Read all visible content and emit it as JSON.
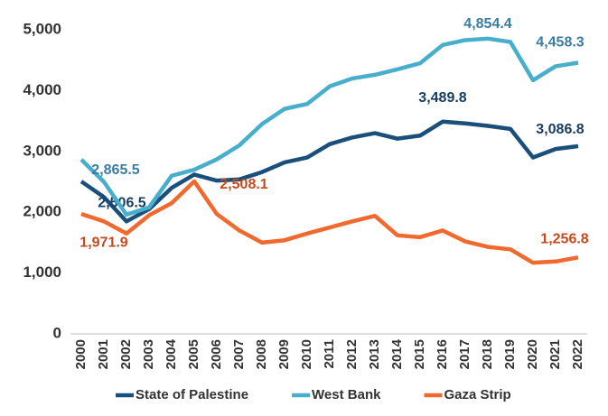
{
  "chart_data": {
    "type": "line",
    "categories": [
      "2000",
      "2001",
      "2002",
      "2003",
      "2004",
      "2005",
      "2006",
      "2007",
      "2008",
      "2009",
      "2010",
      "2011",
      "2012",
      "2013",
      "2014",
      "2015",
      "2016",
      "2017",
      "2018",
      "2019",
      "2020",
      "2021",
      "2022"
    ],
    "ylim": [
      0,
      5000
    ],
    "yticks": [
      0,
      {
        "value": 1000,
        "label": "1,000"
      },
      {
        "value": 2000,
        "label": "2,000"
      },
      {
        "value": 3000,
        "label": "3,000"
      },
      {
        "value": 4000,
        "label": "4,000"
      },
      {
        "value": 5000,
        "label": "5,000"
      }
    ],
    "grid": false,
    "legend": "bottom",
    "series": [
      {
        "name": "State of Palestine",
        "color": "#1b4f7b",
        "label_color": "#173f63",
        "values": [
          2506.5,
          2250,
          1850,
          2050,
          2400,
          2620,
          2520,
          2540,
          2660,
          2820,
          2900,
          3120,
          3230,
          3300,
          3210,
          3260,
          3489.8,
          3460,
          3420,
          3370,
          2900,
          3040,
          3086.8
        ],
        "value_labels": [
          "2,506.5",
          null,
          null,
          null,
          null,
          null,
          null,
          null,
          null,
          null,
          null,
          null,
          null,
          null,
          null,
          null,
          "3,489.8",
          null,
          null,
          null,
          null,
          null,
          "3,086.8"
        ]
      },
      {
        "name": "West Bank",
        "color": "#47afcc",
        "label_color": "#3a7da3",
        "values": [
          2865.5,
          2500,
          1960,
          2080,
          2600,
          2700,
          2870,
          3100,
          3450,
          3700,
          3780,
          4070,
          4200,
          4260,
          4350,
          4450,
          4750,
          4830,
          4854.4,
          4800,
          4170,
          4400,
          4458.3
        ],
        "value_labels": [
          "2,865.5",
          null,
          null,
          null,
          null,
          null,
          null,
          null,
          null,
          null,
          null,
          null,
          null,
          null,
          null,
          null,
          null,
          null,
          "4,854.4",
          null,
          null,
          null,
          "4,458.3"
        ]
      },
      {
        "name": "Gaza Strip",
        "color": "#f06a2f",
        "label_color": "#c44a1d",
        "values": [
          1971.9,
          1850,
          1650,
          1950,
          2150,
          2508.1,
          1970,
          1700,
          1500,
          1540,
          1650,
          1750,
          1850,
          1940,
          1620,
          1590,
          1700,
          1520,
          1430,
          1390,
          1170,
          1190,
          1256.8
        ],
        "value_labels": [
          "1,971.9",
          null,
          null,
          null,
          null,
          "2,508.1",
          null,
          null,
          null,
          null,
          null,
          null,
          null,
          null,
          null,
          null,
          null,
          null,
          null,
          null,
          null,
          null,
          "1,256.8"
        ]
      }
    ]
  }
}
